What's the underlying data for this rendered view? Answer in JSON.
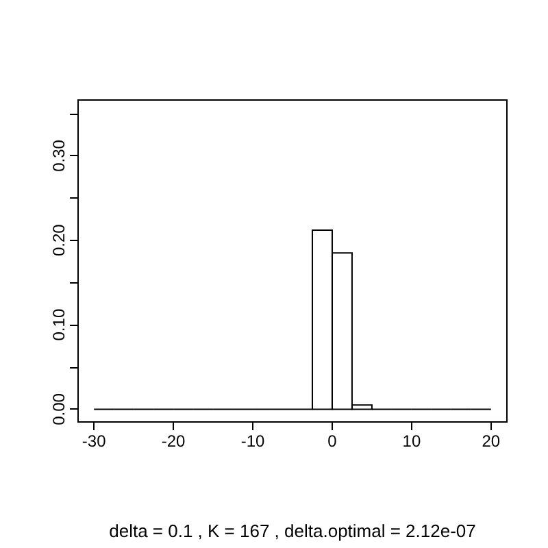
{
  "chart_data": {
    "type": "histogram",
    "xlabel": "delta = 0.1 , K = 167 , delta.optimal = 2.12e-07",
    "bins": [
      -30,
      -27.5,
      -25,
      -22.5,
      -20,
      -17.5,
      -15,
      -12.5,
      -10,
      -7.5,
      -5,
      -2.5,
      0,
      2.5,
      5,
      7.5,
      10,
      12.5,
      15,
      17.5,
      20
    ],
    "values": [
      0,
      0,
      0,
      0,
      0,
      0,
      0,
      0,
      0,
      0,
      0,
      0.212,
      0.185,
      0.005,
      0,
      0,
      0,
      0,
      0,
      0
    ],
    "color": "#000000",
    "xlim": [
      -32,
      22
    ],
    "xticks": [
      -30,
      -20,
      -10,
      0,
      10,
      20
    ],
    "ylim": [
      -0.015,
      0.366
    ],
    "yticks": [
      {
        "value": 0,
        "label": "0.00"
      },
      {
        "value": 0.05,
        "label": null
      },
      {
        "value": 0.1,
        "label": "0.10"
      },
      {
        "value": 0.15,
        "label": null
      },
      {
        "value": 0.2,
        "label": "0.20"
      },
      {
        "value": 0.25,
        "label": null
      },
      {
        "value": 0.3,
        "label": "0.30"
      },
      {
        "value": 0.35,
        "label": null
      }
    ],
    "grid": false
  }
}
